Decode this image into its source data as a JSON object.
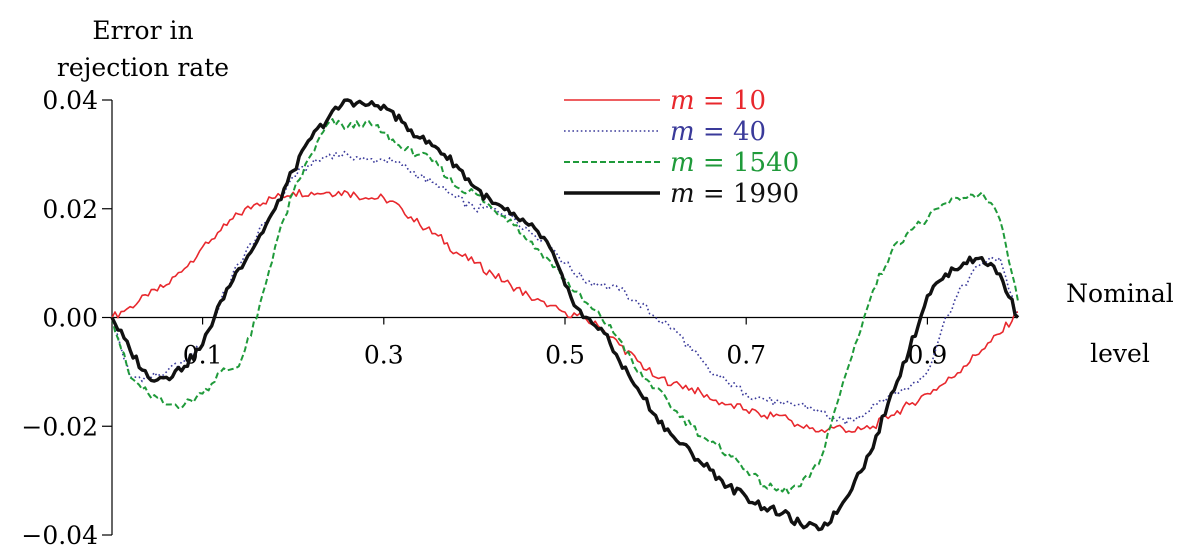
{
  "chart_data": {
    "type": "line",
    "ylabel_line1": "Error in",
    "ylabel_line2": "rejection rate",
    "xlabel_line1": "Nominal",
    "xlabel_line2": "level",
    "xlim": [
      0,
      1
    ],
    "ylim": [
      -0.04,
      0.04
    ],
    "xticks": [
      0.1,
      0.3,
      0.5,
      0.7,
      0.9
    ],
    "xtick_labels": [
      "0.1",
      "0.3",
      "0.5",
      "0.7",
      "0.9"
    ],
    "yticks": [
      0.04,
      0.02,
      0.0,
      -0.02,
      -0.04
    ],
    "ytick_labels": [
      "0.04",
      "0.02",
      "0.00",
      "−0.02",
      "−0.04"
    ],
    "grid": false,
    "legend_position": "top-center",
    "series": [
      {
        "name": "m = 10",
        "legend_var": "m",
        "legend_eq": " = ",
        "legend_num": "10",
        "color": "#e8282d",
        "style": "solid",
        "x": [
          0.0,
          0.02,
          0.04,
          0.06,
          0.08,
          0.1,
          0.12,
          0.14,
          0.16,
          0.18,
          0.2,
          0.22,
          0.24,
          0.26,
          0.28,
          0.3,
          0.32,
          0.34,
          0.36,
          0.38,
          0.4,
          0.42,
          0.44,
          0.46,
          0.48,
          0.5,
          0.52,
          0.54,
          0.56,
          0.58,
          0.6,
          0.62,
          0.64,
          0.66,
          0.68,
          0.7,
          0.72,
          0.74,
          0.76,
          0.78,
          0.8,
          0.82,
          0.84,
          0.86,
          0.88,
          0.9,
          0.92,
          0.94,
          0.96,
          0.98,
          1.0
        ],
        "y": [
          0.0,
          0.002,
          0.004,
          0.006,
          0.009,
          0.013,
          0.016,
          0.019,
          0.021,
          0.022,
          0.023,
          0.023,
          0.023,
          0.023,
          0.022,
          0.022,
          0.02,
          0.017,
          0.015,
          0.012,
          0.01,
          0.008,
          0.006,
          0.004,
          0.002,
          0.001,
          0.0,
          -0.002,
          -0.005,
          -0.008,
          -0.011,
          -0.012,
          -0.013,
          -0.015,
          -0.016,
          -0.017,
          -0.018,
          -0.018,
          -0.02,
          -0.021,
          -0.02,
          -0.021,
          -0.02,
          -0.018,
          -0.016,
          -0.014,
          -0.012,
          -0.009,
          -0.006,
          -0.003,
          0.001
        ]
      },
      {
        "name": "m = 40",
        "legend_var": "m",
        "legend_eq": " = ",
        "legend_num": "40",
        "color": "#3a3a9a",
        "style": "dotted",
        "x": [
          0.0,
          0.02,
          0.04,
          0.06,
          0.08,
          0.1,
          0.12,
          0.14,
          0.16,
          0.18,
          0.2,
          0.22,
          0.24,
          0.26,
          0.28,
          0.3,
          0.32,
          0.34,
          0.36,
          0.38,
          0.4,
          0.42,
          0.44,
          0.46,
          0.48,
          0.5,
          0.52,
          0.54,
          0.56,
          0.58,
          0.6,
          0.62,
          0.64,
          0.66,
          0.68,
          0.7,
          0.72,
          0.74,
          0.76,
          0.78,
          0.8,
          0.82,
          0.84,
          0.86,
          0.88,
          0.9,
          0.92,
          0.94,
          0.96,
          0.98,
          1.0
        ],
        "y": [
          0.0,
          -0.011,
          -0.011,
          -0.01,
          -0.008,
          -0.005,
          0.003,
          0.01,
          0.015,
          0.02,
          0.026,
          0.028,
          0.03,
          0.03,
          0.029,
          0.029,
          0.028,
          0.026,
          0.024,
          0.022,
          0.02,
          0.02,
          0.019,
          0.016,
          0.014,
          0.01,
          0.007,
          0.006,
          0.005,
          0.003,
          0.0,
          -0.002,
          -0.006,
          -0.01,
          -0.012,
          -0.014,
          -0.015,
          -0.016,
          -0.016,
          -0.017,
          -0.019,
          -0.019,
          -0.016,
          -0.014,
          -0.013,
          -0.01,
          0.0,
          0.006,
          0.01,
          0.011,
          0.0
        ]
      },
      {
        "name": "m = 1540",
        "legend_var": "m",
        "legend_eq": " = ",
        "legend_num": "1540",
        "color": "#1f9a3a",
        "style": "dashed",
        "x": [
          0.0,
          0.02,
          0.04,
          0.06,
          0.08,
          0.1,
          0.12,
          0.14,
          0.16,
          0.18,
          0.2,
          0.22,
          0.24,
          0.26,
          0.28,
          0.3,
          0.32,
          0.34,
          0.36,
          0.38,
          0.4,
          0.42,
          0.44,
          0.46,
          0.48,
          0.5,
          0.52,
          0.54,
          0.56,
          0.58,
          0.6,
          0.62,
          0.64,
          0.66,
          0.68,
          0.7,
          0.72,
          0.74,
          0.76,
          0.78,
          0.8,
          0.82,
          0.84,
          0.86,
          0.88,
          0.9,
          0.92,
          0.94,
          0.96,
          0.98,
          1.0
        ],
        "y": [
          0.0,
          -0.011,
          -0.014,
          -0.016,
          -0.016,
          -0.014,
          -0.01,
          -0.009,
          0.0,
          0.013,
          0.023,
          0.03,
          0.036,
          0.035,
          0.036,
          0.034,
          0.031,
          0.03,
          0.028,
          0.024,
          0.023,
          0.02,
          0.018,
          0.014,
          0.011,
          0.007,
          0.003,
          0.0,
          -0.004,
          -0.01,
          -0.013,
          -0.017,
          -0.02,
          -0.023,
          -0.025,
          -0.028,
          -0.031,
          -0.032,
          -0.031,
          -0.027,
          -0.016,
          -0.005,
          0.005,
          0.012,
          0.016,
          0.018,
          0.021,
          0.022,
          0.023,
          0.018,
          0.003
        ]
      },
      {
        "name": "m = 1990",
        "legend_var": "m",
        "legend_eq": " = ",
        "legend_num": "1990",
        "color": "#111111",
        "style": "solid-thick",
        "x": [
          0.0,
          0.02,
          0.04,
          0.06,
          0.08,
          0.1,
          0.12,
          0.14,
          0.16,
          0.18,
          0.2,
          0.22,
          0.24,
          0.26,
          0.28,
          0.3,
          0.32,
          0.34,
          0.36,
          0.38,
          0.4,
          0.42,
          0.44,
          0.46,
          0.48,
          0.5,
          0.52,
          0.54,
          0.56,
          0.58,
          0.6,
          0.62,
          0.64,
          0.66,
          0.68,
          0.7,
          0.72,
          0.74,
          0.76,
          0.78,
          0.8,
          0.82,
          0.84,
          0.86,
          0.88,
          0.9,
          0.92,
          0.94,
          0.96,
          0.98,
          1.0
        ],
        "y": [
          0.0,
          -0.006,
          -0.011,
          -0.011,
          -0.009,
          -0.005,
          0.003,
          0.009,
          0.014,
          0.02,
          0.027,
          0.033,
          0.037,
          0.04,
          0.039,
          0.039,
          0.036,
          0.033,
          0.031,
          0.028,
          0.024,
          0.021,
          0.019,
          0.017,
          0.014,
          0.006,
          0.0,
          -0.002,
          -0.008,
          -0.013,
          -0.018,
          -0.022,
          -0.025,
          -0.028,
          -0.031,
          -0.033,
          -0.035,
          -0.036,
          -0.038,
          -0.039,
          -0.036,
          -0.03,
          -0.024,
          -0.014,
          -0.006,
          0.004,
          0.008,
          0.01,
          0.011,
          0.008,
          0.0
        ]
      }
    ]
  }
}
